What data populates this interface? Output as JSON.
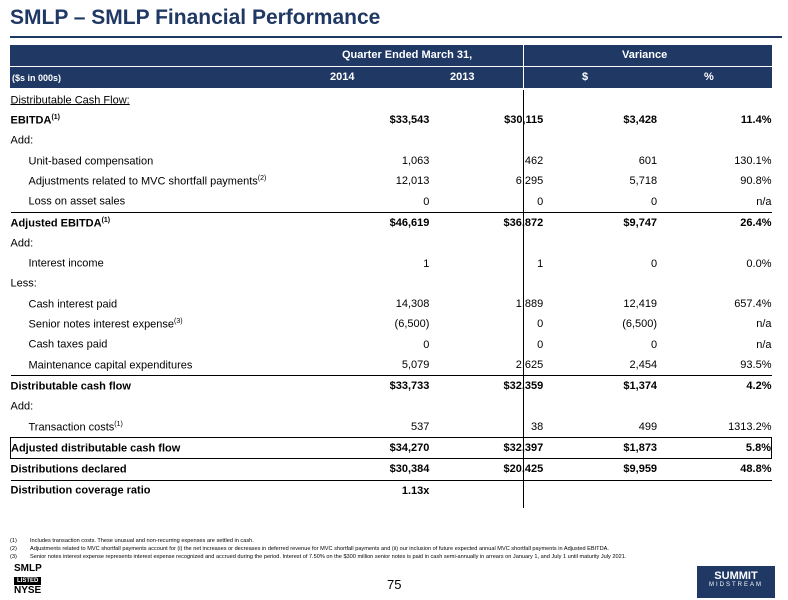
{
  "title": "SMLP – SMLP Financial Performance",
  "header": {
    "period": "Quarter Ended March 31,",
    "variance": "Variance",
    "units": "($s in 000s)",
    "col_2014": "2014",
    "col_2013": "2013",
    "col_dollar": "$",
    "col_pct": "%"
  },
  "rows": [
    {
      "label": "Distributable Cash Flow:",
      "sup": "",
      "c1": "",
      "c2": "",
      "c3": "",
      "c4": ""
    },
    {
      "label": "EBITDA",
      "sup": "(1)",
      "c1": "$33,543",
      "c2": "$30,115",
      "c3": "$3,428",
      "c4": "11.4%"
    },
    {
      "label": "Add:",
      "sup": "",
      "c1": "",
      "c2": "",
      "c3": "",
      "c4": ""
    },
    {
      "label": "Unit-based compensation",
      "sup": "",
      "c1": "1,063",
      "c2": "462",
      "c3": "601",
      "c4": "130.1%"
    },
    {
      "label": "Adjustments related to MVC shortfall payments",
      "sup": "(2)",
      "c1": "12,013",
      "c2": "6,295",
      "c3": "5,718",
      "c4": "90.8%"
    },
    {
      "label": "Loss on asset sales",
      "sup": "",
      "c1": "0",
      "c2": "0",
      "c3": "0",
      "c4": "n/a"
    },
    {
      "label": "Adjusted EBITDA",
      "sup": "(1)",
      "c1": "$46,619",
      "c2": "$36,872",
      "c3": "$9,747",
      "c4": "26.4%"
    },
    {
      "label": "Add:",
      "sup": "",
      "c1": "",
      "c2": "",
      "c3": "",
      "c4": ""
    },
    {
      "label": "Interest income",
      "sup": "",
      "c1": "1",
      "c2": "1",
      "c3": "0",
      "c4": "0.0%"
    },
    {
      "label": "Less:",
      "sup": "",
      "c1": "",
      "c2": "",
      "c3": "",
      "c4": ""
    },
    {
      "label": "Cash interest paid",
      "sup": "",
      "c1": "14,308",
      "c2": "1,889",
      "c3": "12,419",
      "c4": "657.4%"
    },
    {
      "label": "Senior notes interest expense",
      "sup": "(3)",
      "c1": "(6,500)",
      "c2": "0",
      "c3": "(6,500)",
      "c4": "n/a"
    },
    {
      "label": "Cash taxes paid",
      "sup": "",
      "c1": "0",
      "c2": "0",
      "c3": "0",
      "c4": "n/a"
    },
    {
      "label": "Maintenance capital expenditures",
      "sup": "",
      "c1": "5,079",
      "c2": "2,625",
      "c3": "2,454",
      "c4": "93.5%"
    },
    {
      "label": "Distributable cash flow",
      "sup": "",
      "c1": "$33,733",
      "c2": "$32,359",
      "c3": "$1,374",
      "c4": "4.2%"
    },
    {
      "label": "Add:",
      "sup": "",
      "c1": "",
      "c2": "",
      "c3": "",
      "c4": ""
    },
    {
      "label": "Transaction costs",
      "sup": "(1)",
      "c1": "537",
      "c2": "38",
      "c3": "499",
      "c4": "1313.2%"
    },
    {
      "label": "Adjusted distributable cash flow",
      "sup": "",
      "c1": "$34,270",
      "c2": "$32,397",
      "c3": "$1,873",
      "c4": "5.8%"
    },
    {
      "label": "Distributions declared",
      "sup": "",
      "c1": "$30,384",
      "c2": "$20,425",
      "c3": "$9,959",
      "c4": "48.8%"
    },
    {
      "label": "Distribution coverage ratio",
      "sup": "",
      "c1": "1.13x",
      "c2": "",
      "c3": "",
      "c4": ""
    }
  ],
  "footnotes": [
    {
      "n": "(1)",
      "text": "Includes transaction costs.  These unusual and non-recurring expenses are settled in cash."
    },
    {
      "n": "(2)",
      "text": "Adjustments related to MVC shortfall payments account for (i) the net increases or decreases in deferred revenue for MVC shortfall payments and (ii) our inclusion of future expected annual MVC shortfall payments in Adjusted EBITDA."
    },
    {
      "n": "(3)",
      "text": "Senior notes interest expense represents interest expense recognized and accrued during the period.  Interest of 7.50% on the $300 million senior notes is paid in cash semi-annually in arrears on January 1, and July 1 until maturity July 2021."
    }
  ],
  "page_number": "75",
  "logo_left": {
    "line1": "SMLP",
    "line2": "LISTED",
    "line3": "NYSE"
  },
  "logo_right": {
    "line1": "SUMMIT",
    "line2": "MIDSTREAM"
  }
}
